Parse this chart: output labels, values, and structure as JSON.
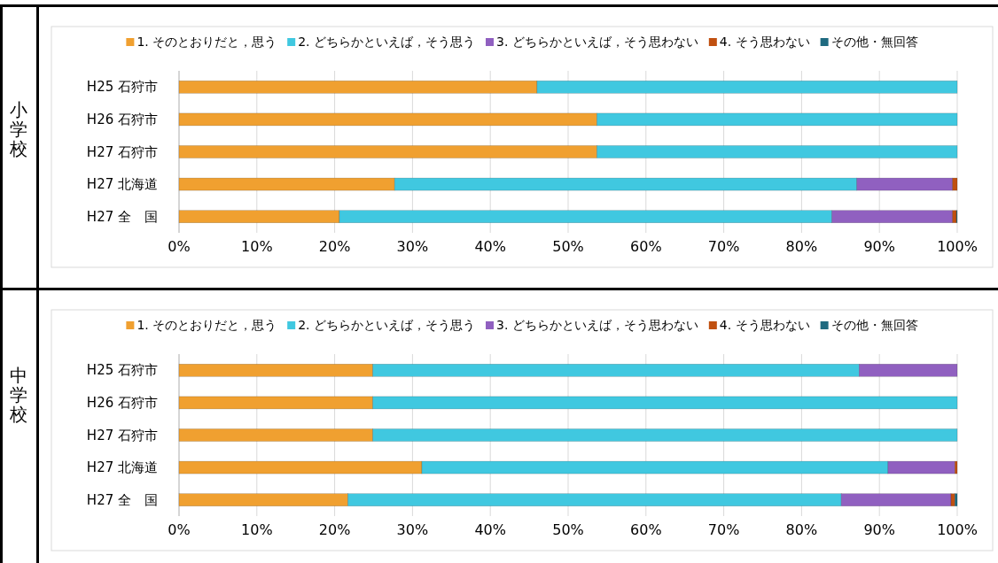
{
  "chart_data": [
    {
      "type": "bar",
      "orientation": "horizontal",
      "stacked": true,
      "ylabel": "小学校",
      "legend": "top",
      "grid": "x",
      "categories": [
        "H25 石狩市",
        "H26 石狩市",
        "H27 石狩市",
        "H27 北海道",
        "H27 全　国"
      ],
      "xlim": [
        0,
        100
      ],
      "xticks": [
        {
          "value": 0,
          "label": "0%"
        },
        {
          "value": 10,
          "label": "10%"
        },
        {
          "value": 20,
          "label": "20%"
        },
        {
          "value": 30,
          "label": "30%"
        },
        {
          "value": 40,
          "label": "40%"
        },
        {
          "value": 50,
          "label": "50%"
        },
        {
          "value": 60,
          "label": "60%"
        },
        {
          "value": 70,
          "label": "70%"
        },
        {
          "value": 80,
          "label": "80%"
        },
        {
          "value": 90,
          "label": "90%"
        },
        {
          "value": 100,
          "label": "100%"
        }
      ],
      "series": [
        {
          "name": "1. そのとおりだと，思う",
          "color": "#f0a030",
          "values": [
            46.0,
            53.7,
            53.7,
            27.7,
            20.6
          ]
        },
        {
          "name": "2. どちらかといえば，そう思う",
          "color": "#40c8e0",
          "values": [
            54.0,
            46.3,
            46.3,
            59.4,
            63.3
          ]
        },
        {
          "name": "3. どちらかといえば，そう思わない",
          "color": "#9060c0",
          "values": [
            0,
            0,
            0,
            12.3,
            15.5
          ]
        },
        {
          "name": "4. そう思わない",
          "color": "#c05010",
          "values": [
            0,
            0,
            0,
            0.6,
            0.5
          ]
        },
        {
          "name": "その他・無回答",
          "color": "#1f6a80",
          "values": [
            0,
            0,
            0,
            0,
            0.1
          ]
        }
      ]
    },
    {
      "type": "bar",
      "orientation": "horizontal",
      "stacked": true,
      "ylabel": "中学校",
      "legend": "top",
      "grid": "x",
      "categories": [
        "H25 石狩市",
        "H26 石狩市",
        "H27 石狩市",
        "H27 北海道",
        "H27 全　国"
      ],
      "xlim": [
        0,
        100
      ],
      "xticks": [
        {
          "value": 0,
          "label": "0%"
        },
        {
          "value": 10,
          "label": "10%"
        },
        {
          "value": 20,
          "label": "20%"
        },
        {
          "value": 30,
          "label": "30%"
        },
        {
          "value": 40,
          "label": "40%"
        },
        {
          "value": 50,
          "label": "50%"
        },
        {
          "value": 60,
          "label": "60%"
        },
        {
          "value": 70,
          "label": "70%"
        },
        {
          "value": 80,
          "label": "80%"
        },
        {
          "value": 90,
          "label": "90%"
        },
        {
          "value": 100,
          "label": "100%"
        }
      ],
      "series": [
        {
          "name": "1. そのとおりだと，思う",
          "color": "#f0a030",
          "values": [
            24.9,
            24.9,
            24.9,
            31.2,
            21.7
          ]
        },
        {
          "name": "2. どちらかといえば，そう思う",
          "color": "#40c8e0",
          "values": [
            62.5,
            75.1,
            75.1,
            59.9,
            63.4
          ]
        },
        {
          "name": "3. どちらかといえば，そう思わない",
          "color": "#9060c0",
          "values": [
            12.6,
            0,
            0,
            8.6,
            14.1
          ]
        },
        {
          "name": "4. そう思わない",
          "color": "#c05010",
          "values": [
            0,
            0,
            0,
            0.3,
            0.5
          ]
        },
        {
          "name": "その他・無回答",
          "color": "#1f6a80",
          "values": [
            0,
            0,
            0,
            0,
            0.3
          ]
        }
      ]
    }
  ]
}
